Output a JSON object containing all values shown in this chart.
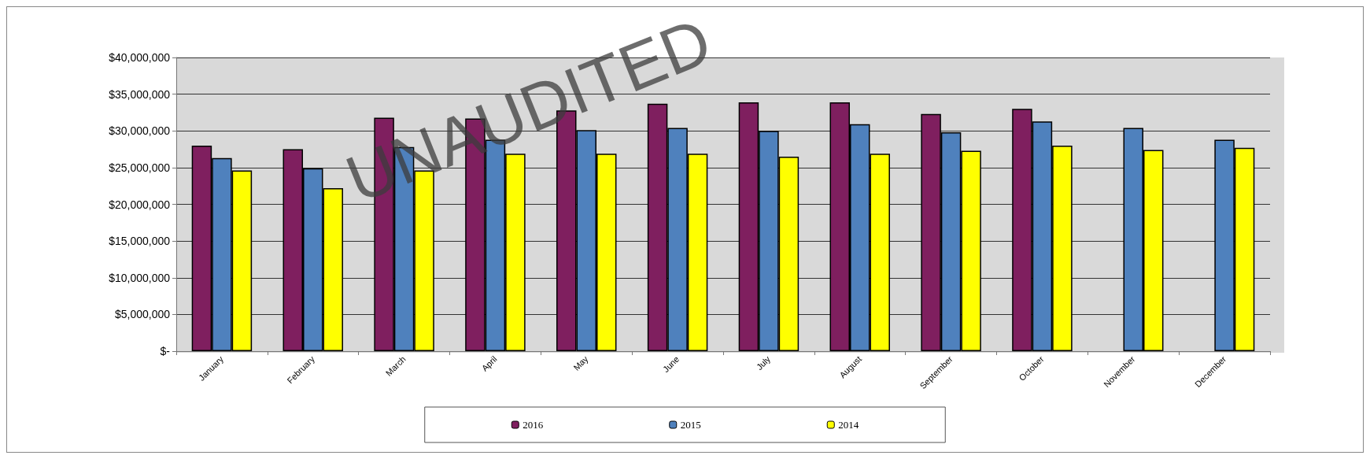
{
  "chart_data": {
    "type": "bar",
    "categories": [
      "January",
      "February",
      "March",
      "April",
      "May",
      "June",
      "July",
      "August",
      "September",
      "October",
      "November",
      "December"
    ],
    "series": [
      {
        "name": "2016",
        "color": "#7f1f5f",
        "values": [
          28000000,
          27500000,
          31800000,
          31700000,
          32800000,
          33700000,
          33900000,
          33900000,
          32300000,
          33000000,
          null,
          null
        ]
      },
      {
        "name": "2015",
        "color": "#4f81bd",
        "values": [
          26300000,
          24900000,
          27800000,
          28800000,
          30100000,
          30400000,
          30000000,
          30900000,
          29800000,
          31300000,
          30400000,
          28800000
        ]
      },
      {
        "name": "2014",
        "color": "#ffff00",
        "values": [
          24600000,
          22200000,
          24600000,
          26900000,
          26900000,
          26900000,
          26500000,
          26900000,
          27300000,
          28000000,
          27400000,
          27700000
        ]
      }
    ],
    "ylim": [
      0,
      40000000
    ],
    "yticks": [
      {
        "value": 0,
        "label": "$-"
      },
      {
        "value": 5000000,
        "label": "$5,000,000"
      },
      {
        "value": 10000000,
        "label": "$10,000,000"
      },
      {
        "value": 15000000,
        "label": "$15,000,000"
      },
      {
        "value": 20000000,
        "label": "$20,000,000"
      },
      {
        "value": 25000000,
        "label": "$25,000,000"
      },
      {
        "value": 30000000,
        "label": "$30,000,000"
      },
      {
        "value": 35000000,
        "label": "$35,000,000"
      },
      {
        "value": 40000000,
        "label": "$40,000,000"
      }
    ],
    "grid": "y",
    "legend": "bottom",
    "annotations": [
      "UNAUDITED"
    ]
  }
}
